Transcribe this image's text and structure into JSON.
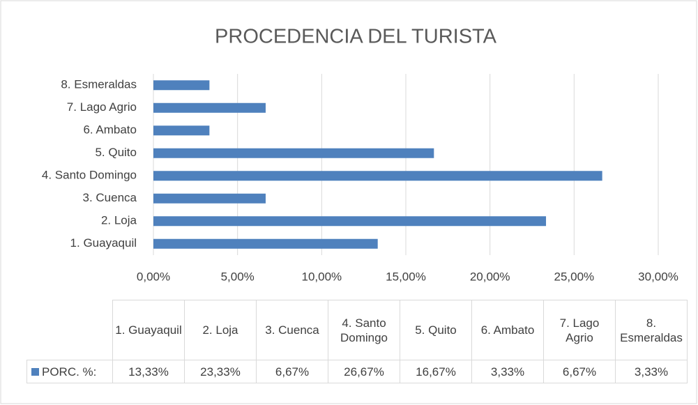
{
  "chart_data": {
    "type": "bar",
    "orientation": "horizontal",
    "title": "PROCEDENCIA DEL TURISTA",
    "categories": [
      "1. Guayaquil",
      "2. Loja",
      "3. Cuenca",
      "4. Santo Domingo",
      "5. Quito",
      "6. Ambato",
      "7. Lago Agrio",
      "8. Esmeraldas"
    ],
    "series": [
      {
        "name": "PORC. %:",
        "color": "#4f81bd",
        "values": [
          13.33,
          23.33,
          6.67,
          26.67,
          16.67,
          3.33,
          6.67,
          3.33
        ],
        "value_labels": [
          "13,33%",
          "23,33%",
          "6,67%",
          "26,67%",
          "16,67%",
          "3,33%",
          "6,67%",
          "3,33%"
        ]
      }
    ],
    "xlim": [
      0,
      30
    ],
    "xticks": [
      {
        "value": 0,
        "label": "0,00%"
      },
      {
        "value": 5,
        "label": "5,00%"
      },
      {
        "value": 10,
        "label": "10,00%"
      },
      {
        "value": 15,
        "label": "15,00%"
      },
      {
        "value": 20,
        "label": "20,00%"
      },
      {
        "value": 25,
        "label": "25,00%"
      },
      {
        "value": 30,
        "label": "30,00%"
      }
    ],
    "grid": true,
    "data_table": true
  }
}
